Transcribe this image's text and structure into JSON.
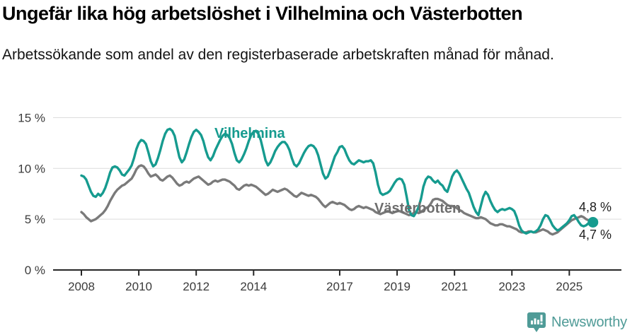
{
  "header": {
    "title": "Ungefär lika hög arbetslöshet i Vilhelmina och Västerbotten",
    "subtitle": "Arbetssökande som andel av den registerbaserade arbetskraften månad för månad."
  },
  "chart_data": {
    "type": "line",
    "unit": "%",
    "x_start_year": 2008,
    "x_end_label": "2025-10",
    "points_per_year": 12,
    "ylim": [
      0,
      16
    ],
    "grid": "horizontal",
    "grid_color": "#dcdcdc",
    "axis_color": "#262626",
    "y_ticks": [
      "0 %",
      "5 %",
      "10 %",
      "15 %"
    ],
    "y_tick_values": [
      0,
      5,
      10,
      15
    ],
    "x_tick_years": [
      2008,
      2010,
      2012,
      2014,
      2017,
      2019,
      2021,
      2023,
      2025
    ],
    "x_tick_labels": [
      "2008",
      "2010",
      "2012",
      "2014",
      "2017",
      "2019",
      "2021",
      "2023",
      "2025"
    ],
    "series": [
      {
        "name": "Vilhelmina",
        "color": "#169b8f",
        "end_label": "4,7 %",
        "end_value": 4.7,
        "end_dot": true,
        "values": [
          9.3,
          9.2,
          8.9,
          8.3,
          7.7,
          7.3,
          7.2,
          7.5,
          7.3,
          7.6,
          8.1,
          8.8,
          9.6,
          10.1,
          10.2,
          10.1,
          9.8,
          9.4,
          9.3,
          9.6,
          9.9,
          10.3,
          11.0,
          11.9,
          12.5,
          12.8,
          12.7,
          12.4,
          11.6,
          10.7,
          10.2,
          10.4,
          11.0,
          11.8,
          12.7,
          13.4,
          13.8,
          13.9,
          13.7,
          13.2,
          12.1,
          11.1,
          10.6,
          10.9,
          11.6,
          12.4,
          13.1,
          13.6,
          13.8,
          13.6,
          13.3,
          12.7,
          11.8,
          11.1,
          10.8,
          11.2,
          11.8,
          12.3,
          12.8,
          13.2,
          13.4,
          13.3,
          13.0,
          12.4,
          11.5,
          10.8,
          10.6,
          10.9,
          11.4,
          12.0,
          12.7,
          13.3,
          13.6,
          13.7,
          13.4,
          12.8,
          11.8,
          10.8,
          10.3,
          10.6,
          11.1,
          11.7,
          12.1,
          12.4,
          12.6,
          12.6,
          12.3,
          11.8,
          11.0,
          10.4,
          10.2,
          10.5,
          11.0,
          11.5,
          11.9,
          12.2,
          12.3,
          12.2,
          11.9,
          11.3,
          10.4,
          9.5,
          9.0,
          9.2,
          9.8,
          10.5,
          11.2,
          11.6,
          12.1,
          12.2,
          11.9,
          11.3,
          10.8,
          10.5,
          10.4,
          10.6,
          10.8,
          10.7,
          10.6,
          10.7,
          10.7,
          10.8,
          10.5,
          9.6,
          8.4,
          7.6,
          7.4,
          7.5,
          7.6,
          7.8,
          8.2,
          8.6,
          8.9,
          9.0,
          8.9,
          8.4,
          7.2,
          5.9,
          5.4,
          5.3,
          5.7,
          6.2,
          7.0,
          8.2,
          8.9,
          9.2,
          9.1,
          8.8,
          8.6,
          8.8,
          8.5,
          8.3,
          7.9,
          7.7,
          8.4,
          9.2,
          9.6,
          9.8,
          9.5,
          9.0,
          8.5,
          8.0,
          7.6,
          6.9,
          6.2,
          5.7,
          5.4,
          6.3,
          7.2,
          7.7,
          7.4,
          6.8,
          6.3,
          5.9,
          5.7,
          5.9,
          6.0,
          5.9,
          6.0,
          6.1,
          6.0,
          5.8,
          5.2,
          4.4,
          3.9,
          3.7,
          3.6,
          3.7,
          3.8,
          3.7,
          3.8,
          4.0,
          4.4,
          5.0,
          5.4,
          5.3,
          4.9,
          4.4,
          4.1,
          3.9,
          4.0,
          4.2,
          4.4,
          4.6,
          4.9,
          5.3,
          5.4,
          5.1,
          4.7,
          4.4,
          4.3,
          4.4,
          4.6,
          4.7
        ]
      },
      {
        "name": "Västerbotten",
        "color": "#7a7a7a",
        "label_color": "#6e6e6e",
        "end_label": "4,8 %",
        "end_value": 4.8,
        "end_dot": false,
        "values": [
          5.7,
          5.5,
          5.2,
          5.0,
          4.8,
          4.9,
          5.0,
          5.2,
          5.4,
          5.6,
          5.9,
          6.3,
          6.8,
          7.2,
          7.6,
          7.9,
          8.1,
          8.3,
          8.4,
          8.6,
          8.8,
          9.0,
          9.4,
          9.9,
          10.2,
          10.3,
          10.2,
          9.9,
          9.5,
          9.2,
          9.3,
          9.4,
          9.2,
          8.9,
          8.8,
          9.0,
          9.2,
          9.3,
          9.1,
          8.8,
          8.5,
          8.3,
          8.4,
          8.6,
          8.7,
          8.6,
          8.8,
          9.0,
          9.1,
          9.2,
          9.0,
          8.8,
          8.6,
          8.4,
          8.5,
          8.7,
          8.8,
          8.7,
          8.8,
          8.9,
          8.9,
          8.8,
          8.7,
          8.5,
          8.3,
          8.0,
          7.9,
          8.1,
          8.3,
          8.4,
          8.3,
          8.4,
          8.3,
          8.2,
          8.0,
          7.8,
          7.6,
          7.4,
          7.5,
          7.7,
          7.9,
          7.8,
          7.7,
          7.8,
          7.9,
          8.0,
          7.9,
          7.7,
          7.5,
          7.3,
          7.2,
          7.4,
          7.6,
          7.5,
          7.4,
          7.3,
          7.4,
          7.3,
          7.2,
          7.0,
          6.7,
          6.4,
          6.2,
          6.4,
          6.6,
          6.7,
          6.6,
          6.5,
          6.6,
          6.5,
          6.4,
          6.2,
          6.0,
          5.9,
          6.0,
          6.2,
          6.3,
          6.2,
          6.1,
          6.2,
          6.1,
          6.0,
          5.9,
          5.7,
          5.6,
          5.5,
          5.6,
          5.7,
          5.8,
          5.7,
          5.6,
          5.7,
          5.8,
          5.8,
          5.7,
          5.6,
          5.5,
          5.4,
          5.5,
          5.6,
          5.7,
          5.6,
          5.7,
          5.9,
          6.1,
          6.2,
          6.5,
          6.9,
          7.0,
          7.0,
          6.9,
          6.8,
          6.6,
          6.4,
          6.3,
          6.3,
          6.2,
          6.1,
          5.9,
          5.8,
          5.6,
          5.5,
          5.4,
          5.3,
          5.2,
          5.1,
          5.1,
          5.2,
          5.1,
          5.0,
          4.8,
          4.6,
          4.5,
          4.4,
          4.4,
          4.5,
          4.5,
          4.4,
          4.3,
          4.3,
          4.2,
          4.1,
          4.0,
          3.8,
          3.7,
          3.7,
          3.7,
          3.8,
          3.8,
          3.7,
          3.7,
          3.8,
          3.9,
          4.0,
          3.9,
          3.8,
          3.6,
          3.5,
          3.6,
          3.7,
          3.9,
          4.1,
          4.3,
          4.5,
          4.7,
          4.9,
          5.0,
          5.1,
          5.2,
          5.3,
          5.2,
          5.0,
          4.9,
          4.8
        ]
      }
    ]
  },
  "footer": {
    "brand": "Newsworthy",
    "brand_color": "#4f9b97"
  }
}
